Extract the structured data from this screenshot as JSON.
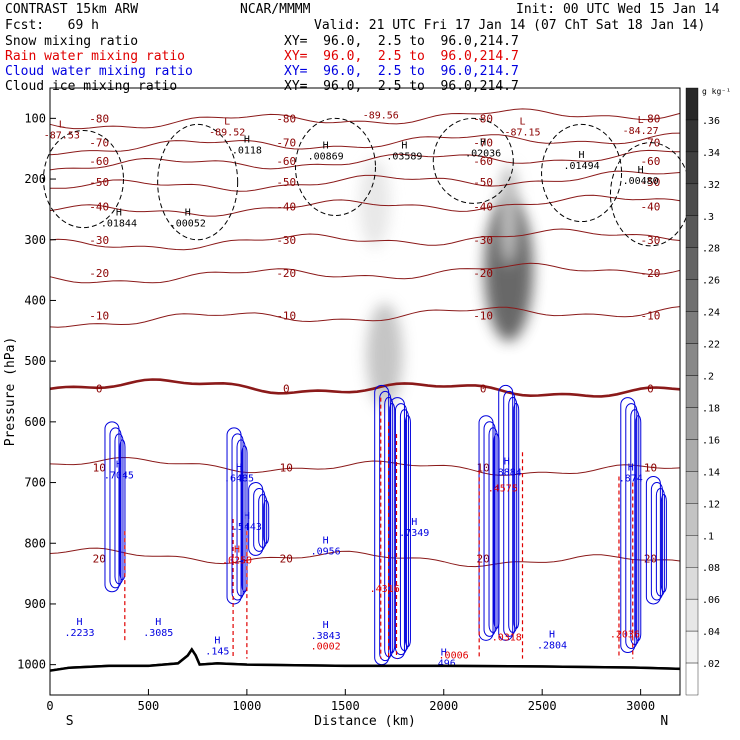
{
  "header": {
    "title": "CONTRAST 15km ARW",
    "model": "NCAR/MMMM",
    "init": "Init: 00 UTC Wed 15 Jan 14",
    "fcst": "Fcst:   69 h",
    "valid": "Valid: 21 UTC Fri 17 Jan 14 (07 ChT Sat 18 Jan 14)"
  },
  "legend": [
    {
      "label": "Snow mixing ratio",
      "xy": "",
      "color": "#000000"
    },
    {
      "label": "Rain water mixing ratio",
      "xy": "XY=  96.0,  2.5 to  96.0,214.7",
      "color": "#e00000"
    },
    {
      "label": "Cloud water mixing ratio",
      "xy": "XY=  96.0,  2.5 to  96.0,214.7",
      "color": "#0000e0"
    },
    {
      "label": "Cloud ice mixing ratio",
      "xy": "XY=  96.0,  2.5 to  96.0,214.7",
      "color": "#000000"
    }
  ],
  "snow_xy": "XY=  96.0,  2.5 to  96.0,214.7",
  "chart_data": {
    "type": "cross-section",
    "xlabel": "Distance (km)",
    "ylabel": "Pressure (hPa)",
    "xlim": [
      0,
      3200
    ],
    "ylim": [
      1050,
      50
    ],
    "x_ticks": [
      0,
      500,
      1000,
      1500,
      2000,
      2500,
      3000
    ],
    "y_ticks": [
      100,
      200,
      300,
      400,
      500,
      600,
      700,
      800,
      900,
      1000
    ],
    "direction_labels": {
      "left": "S",
      "right": "N"
    },
    "colorbar": {
      "unit": "g kg⁻¹",
      "ticks": [
        ".36",
        ".34",
        ".32",
        ".3",
        ".28",
        ".26",
        ".24",
        ".22",
        ".2",
        ".18",
        ".16",
        ".14",
        ".12",
        ".1",
        ".08",
        ".06",
        ".04",
        ".02"
      ]
    },
    "temperature_isotherms": [
      {
        "value": -80,
        "p": 100
      },
      {
        "value": -70,
        "p": 140
      },
      {
        "value": -60,
        "p": 170
      },
      {
        "value": -50,
        "p": 205
      },
      {
        "value": -40,
        "p": 245
      },
      {
        "value": -30,
        "p": 300
      },
      {
        "value": -20,
        "p": 355
      },
      {
        "value": -10,
        "p": 425
      },
      {
        "value": 0,
        "p": 545
      },
      {
        "value": 10,
        "p": 675
      },
      {
        "value": 20,
        "p": 825
      }
    ],
    "isotherm_label_text": [
      "-80",
      "-70",
      "-60",
      "-50",
      "-40",
      "-30",
      "-20",
      "-10",
      "0",
      "10",
      "20"
    ],
    "extrema_labels": [
      {
        "x": 60,
        "p": 115,
        "text": "L\n-87.53",
        "color": "#8b0000"
      },
      {
        "x": 900,
        "p": 110,
        "text": "L\n-89.52",
        "color": "#8b0000"
      },
      {
        "x": 1680,
        "p": 100,
        "text": "-89.56",
        "color": "#8b0000"
      },
      {
        "x": 2400,
        "p": 110,
        "text": "L\n-87.15",
        "color": "#8b0000"
      },
      {
        "x": 3000,
        "p": 108,
        "text": "L\n-84.27",
        "color": "#8b0000"
      },
      {
        "x": 1000,
        "p": 140,
        "text": "H\n.0118",
        "color": "#000000"
      },
      {
        "x": 1400,
        "p": 150,
        "text": "H\n.00869",
        "color": "#000000"
      },
      {
        "x": 1800,
        "p": 150,
        "text": "H\n.03589",
        "color": "#000000"
      },
      {
        "x": 2200,
        "p": 145,
        "text": "H\n.02036",
        "color": "#000000"
      },
      {
        "x": 2700,
        "p": 165,
        "text": "H\n.01494",
        "color": "#000000"
      },
      {
        "x": 3000,
        "p": 190,
        "text": "H\n.00480",
        "color": "#000000"
      },
      {
        "x": 350,
        "p": 260,
        "text": "H\n.01844",
        "color": "#000000"
      },
      {
        "x": 700,
        "p": 260,
        "text": "H\n.00052",
        "color": "#000000"
      },
      {
        "x": 350,
        "p": 675,
        "text": "H\n.7045",
        "color": "#0000e0"
      },
      {
        "x": 960,
        "p": 680,
        "text": "H\n.6485",
        "color": "#0000e0"
      },
      {
        "x": 1000,
        "p": 760,
        "text": "H\n.5443",
        "color": "#0000e0"
      },
      {
        "x": 1400,
        "p": 800,
        "text": "H\n.0956",
        "color": "#0000e0"
      },
      {
        "x": 1850,
        "p": 770,
        "text": "H\n.7349",
        "color": "#0000e0"
      },
      {
        "x": 2320,
        "p": 670,
        "text": "H\n.8884",
        "color": "#0000e0"
      },
      {
        "x": 2950,
        "p": 680,
        "text": "H\n.874",
        "color": "#0000e0"
      },
      {
        "x": 150,
        "p": 935,
        "text": "H\n.2233",
        "color": "#0000e0"
      },
      {
        "x": 550,
        "p": 935,
        "text": "H\n.3085",
        "color": "#0000e0"
      },
      {
        "x": 850,
        "p": 965,
        "text": "H\n.145",
        "color": "#0000e0"
      },
      {
        "x": 1400,
        "p": 940,
        "text": "H\n.3843",
        "color": "#0000e0"
      },
      {
        "x": 2000,
        "p": 985,
        "text": "H\n.496",
        "color": "#0000e0"
      },
      {
        "x": 2550,
        "p": 955,
        "text": "H\n.2804",
        "color": "#0000e0"
      },
      {
        "x": 950,
        "p": 815,
        "text": "H\n.0250",
        "color": "#e00000"
      },
      {
        "x": 1700,
        "p": 880,
        "text": ".4316",
        "color": "#e00000"
      },
      {
        "x": 2300,
        "p": 715,
        "text": ".4575",
        "color": "#e00000"
      },
      {
        "x": 1400,
        "p": 975,
        "text": ".0002",
        "color": "#e00000"
      },
      {
        "x": 2050,
        "p": 990,
        "text": ".0006",
        "color": "#e00000"
      },
      {
        "x": 2320,
        "p": 960,
        "text": ".0318",
        "color": "#e00000"
      },
      {
        "x": 2920,
        "p": 955,
        "text": ".2036",
        "color": "#e00000"
      }
    ],
    "shading_maxima": [
      {
        "x": 2330,
        "p": 350,
        "value": 0.26
      },
      {
        "x": 1700,
        "p": 490,
        "value": 0.1
      },
      {
        "x": 1650,
        "p": 240,
        "value": 0.04
      }
    ],
    "terrain": [
      [
        0,
        1010
      ],
      [
        100,
        1005
      ],
      [
        300,
        1002
      ],
      [
        500,
        1002
      ],
      [
        650,
        998
      ],
      [
        700,
        985
      ],
      [
        720,
        975
      ],
      [
        740,
        985
      ],
      [
        760,
        1000
      ],
      [
        850,
        998
      ],
      [
        1000,
        1000
      ],
      [
        1500,
        1002
      ],
      [
        2000,
        1002
      ],
      [
        2500,
        1003
      ],
      [
        3000,
        1005
      ],
      [
        3200,
        1007
      ]
    ]
  }
}
